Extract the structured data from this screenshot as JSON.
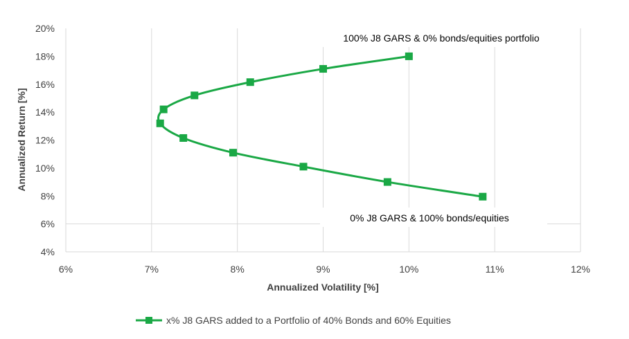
{
  "chart_data": {
    "type": "line",
    "title": "",
    "xlabel": "Annualized Volatility [%]",
    "ylabel": "Annualized Return [%]",
    "xlim": [
      6,
      12
    ],
    "ylim": [
      4,
      20
    ],
    "xticks": [
      "6%",
      "7%",
      "8%",
      "9%",
      "10%",
      "11%",
      "12%"
    ],
    "yticks": [
      "4%",
      "6%",
      "8%",
      "10%",
      "12%",
      "14%",
      "16%",
      "18%",
      "20%"
    ],
    "grid": "vertical",
    "legend_position": "bottom",
    "series": [
      {
        "name": "x% J8 GARS added to a Portfolio of 40% Bonds and 60% Equities",
        "color": "#1aa845",
        "x": [
          10.0,
          9.0,
          8.15,
          7.5,
          7.14,
          7.1,
          7.37,
          7.95,
          8.77,
          9.75,
          10.86
        ],
        "y": [
          18.0,
          17.1,
          16.15,
          15.2,
          14.2,
          13.2,
          12.15,
          11.1,
          10.1,
          9.0,
          7.95
        ]
      }
    ],
    "annotations": [
      {
        "text": "100% J8 GARS & 0% bonds/equities portfolio",
        "x": 9.3,
        "y": 19.6
      },
      {
        "text": "0% J8 GARS & 100% bonds/equities",
        "x": 9.9,
        "y": 6.6
      }
    ]
  }
}
